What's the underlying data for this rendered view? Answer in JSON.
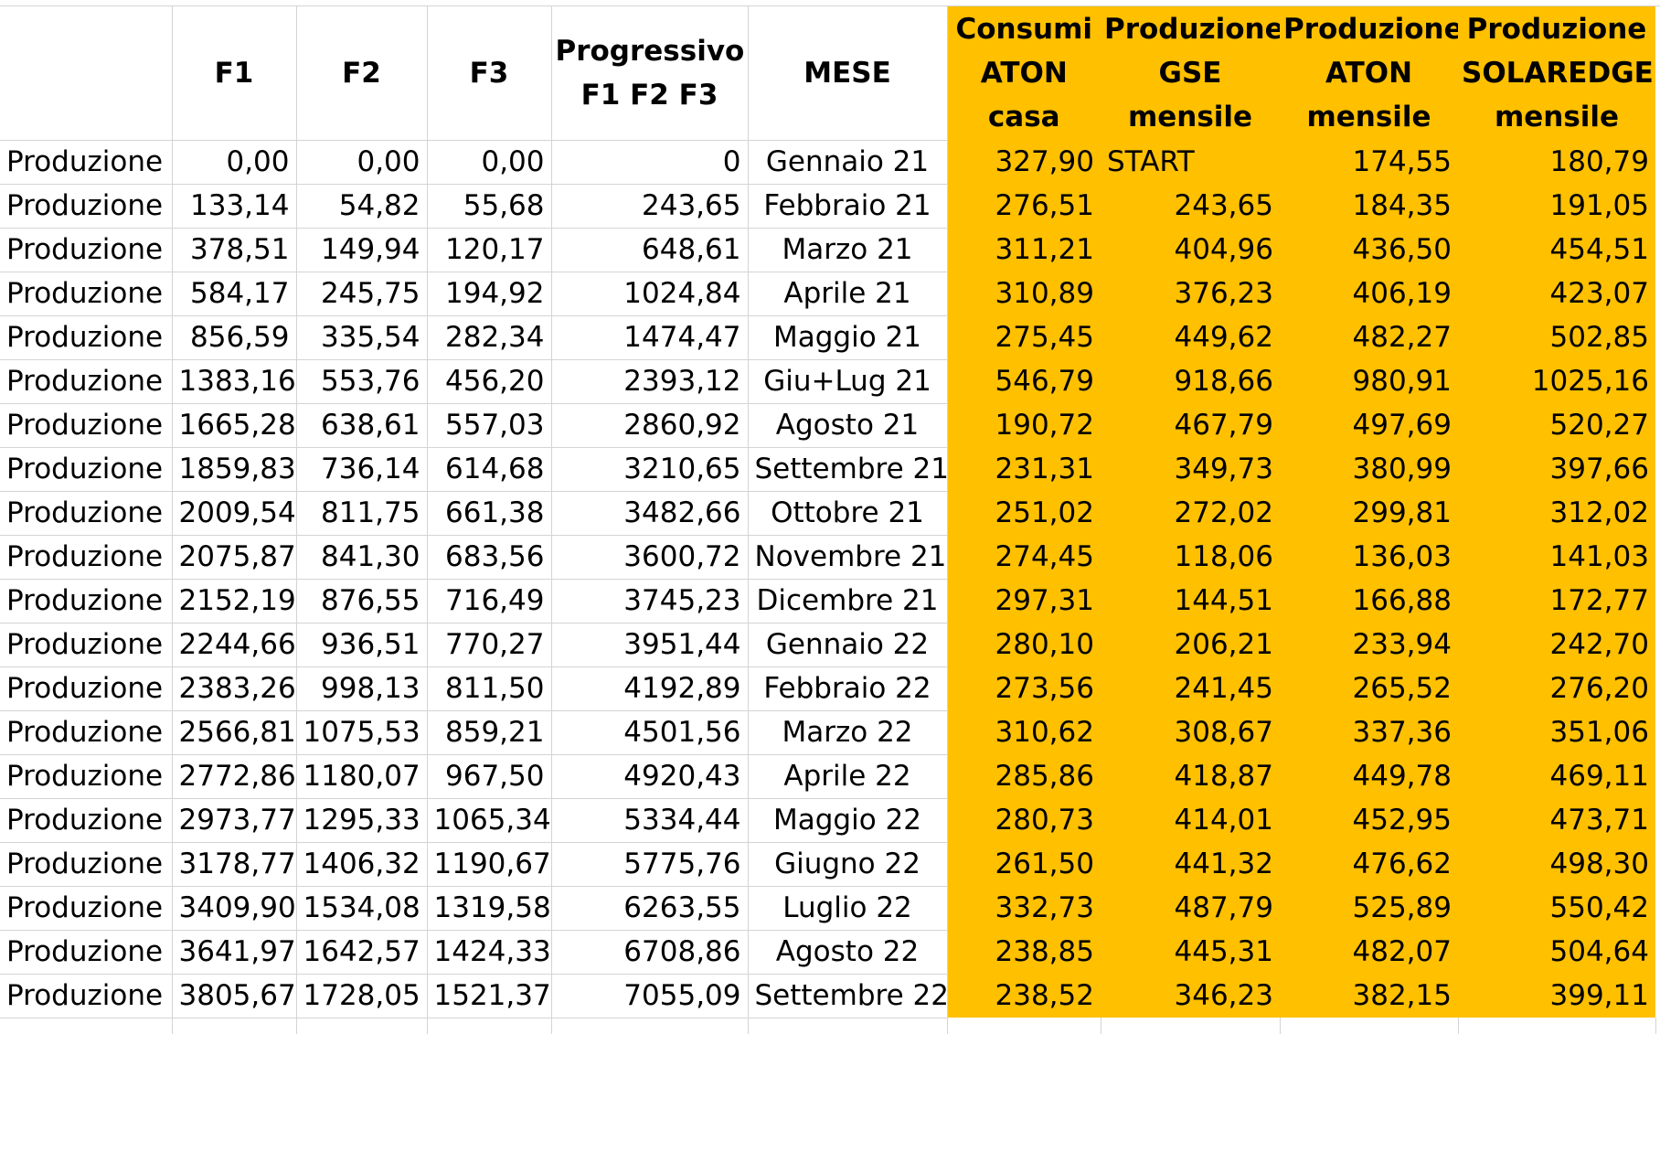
{
  "headers": {
    "label": "",
    "f1": "F1",
    "f2": "F2",
    "f3": "F3",
    "progressivo": [
      "Progressivo",
      "F1 F2 F3"
    ],
    "mese": "MESE",
    "consumi": [
      "Consumi",
      "ATON",
      "casa"
    ],
    "gse": [
      "Produzione",
      "GSE",
      "mensile"
    ],
    "aton": [
      "Produzione",
      "ATON",
      "mensile"
    ],
    "solaredge": [
      "Produzione",
      "SOLAREDGE",
      "mensile"
    ]
  },
  "rows": [
    {
      "label": "Produzione",
      "f1": "0,00",
      "f2": "0,00",
      "f3": "0,00",
      "prog": "0",
      "mese": "Gennaio 21",
      "consumi": "327,90",
      "gse": "START",
      "aton": "174,55",
      "solaredge": "180,79"
    },
    {
      "label": "Produzione",
      "f1": "133,14",
      "f2": "54,82",
      "f3": "55,68",
      "prog": "243,65",
      "mese": "Febbraio 21",
      "consumi": "276,51",
      "gse": "243,65",
      "aton": "184,35",
      "solaredge": "191,05"
    },
    {
      "label": "Produzione",
      "f1": "378,51",
      "f2": "149,94",
      "f3": "120,17",
      "prog": "648,61",
      "mese": "Marzo 21",
      "consumi": "311,21",
      "gse": "404,96",
      "aton": "436,50",
      "solaredge": "454,51"
    },
    {
      "label": "Produzione",
      "f1": "584,17",
      "f2": "245,75",
      "f3": "194,92",
      "prog": "1024,84",
      "mese": "Aprile 21",
      "consumi": "310,89",
      "gse": "376,23",
      "aton": "406,19",
      "solaredge": "423,07"
    },
    {
      "label": "Produzione",
      "f1": "856,59",
      "f2": "335,54",
      "f3": "282,34",
      "prog": "1474,47",
      "mese": "Maggio 21",
      "consumi": "275,45",
      "gse": "449,62",
      "aton": "482,27",
      "solaredge": "502,85"
    },
    {
      "label": "Produzione",
      "f1": "1383,16",
      "f2": "553,76",
      "f3": "456,20",
      "prog": "2393,12",
      "mese": "Giu+Lug 21",
      "consumi": "546,79",
      "gse": "918,66",
      "aton": "980,91",
      "solaredge": "1025,16"
    },
    {
      "label": "Produzione",
      "f1": "1665,28",
      "f2": "638,61",
      "f3": "557,03",
      "prog": "2860,92",
      "mese": "Agosto 21",
      "consumi": "190,72",
      "gse": "467,79",
      "aton": "497,69",
      "solaredge": "520,27"
    },
    {
      "label": "Produzione",
      "f1": "1859,83",
      "f2": "736,14",
      "f3": "614,68",
      "prog": "3210,65",
      "mese": "Settembre 21",
      "consumi": "231,31",
      "gse": "349,73",
      "aton": "380,99",
      "solaredge": "397,66"
    },
    {
      "label": "Produzione",
      "f1": "2009,54",
      "f2": "811,75",
      "f3": "661,38",
      "prog": "3482,66",
      "mese": "Ottobre 21",
      "consumi": "251,02",
      "gse": "272,02",
      "aton": "299,81",
      "solaredge": "312,02"
    },
    {
      "label": "Produzione",
      "f1": "2075,87",
      "f2": "841,30",
      "f3": "683,56",
      "prog": "3600,72",
      "mese": "Novembre 21",
      "consumi": "274,45",
      "gse": "118,06",
      "aton": "136,03",
      "solaredge": "141,03"
    },
    {
      "label": "Produzione",
      "f1": "2152,19",
      "f2": "876,55",
      "f3": "716,49",
      "prog": "3745,23",
      "mese": "Dicembre 21",
      "consumi": "297,31",
      "gse": "144,51",
      "aton": "166,88",
      "solaredge": "172,77"
    },
    {
      "label": "Produzione",
      "f1": "2244,66",
      "f2": "936,51",
      "f3": "770,27",
      "prog": "3951,44",
      "mese": "Gennaio 22",
      "consumi": "280,10",
      "gse": "206,21",
      "aton": "233,94",
      "solaredge": "242,70"
    },
    {
      "label": "Produzione",
      "f1": "2383,26",
      "f2": "998,13",
      "f3": "811,50",
      "prog": "4192,89",
      "mese": "Febbraio 22",
      "consumi": "273,56",
      "gse": "241,45",
      "aton": "265,52",
      "solaredge": "276,20"
    },
    {
      "label": "Produzione",
      "f1": "2566,81",
      "f2": "1075,53",
      "f3": "859,21",
      "prog": "4501,56",
      "mese": "Marzo 22",
      "consumi": "310,62",
      "gse": "308,67",
      "aton": "337,36",
      "solaredge": "351,06"
    },
    {
      "label": "Produzione",
      "f1": "2772,86",
      "f2": "1180,07",
      "f3": "967,50",
      "prog": "4920,43",
      "mese": "Aprile 22",
      "consumi": "285,86",
      "gse": "418,87",
      "aton": "449,78",
      "solaredge": "469,11"
    },
    {
      "label": "Produzione",
      "f1": "2973,77",
      "f2": "1295,33",
      "f3": "1065,34",
      "prog": "5334,44",
      "mese": "Maggio 22",
      "consumi": "280,73",
      "gse": "414,01",
      "aton": "452,95",
      "solaredge": "473,71"
    },
    {
      "label": "Produzione",
      "f1": "3178,77",
      "f2": "1406,32",
      "f3": "1190,67",
      "prog": "5775,76",
      "mese": "Giugno 22",
      "consumi": "261,50",
      "gse": "441,32",
      "aton": "476,62",
      "solaredge": "498,30"
    },
    {
      "label": "Produzione",
      "f1": "3409,90",
      "f2": "1534,08",
      "f3": "1319,58",
      "prog": "6263,55",
      "mese": "Luglio 22",
      "consumi": "332,73",
      "gse": "487,79",
      "aton": "525,89",
      "solaredge": "550,42"
    },
    {
      "label": "Produzione",
      "f1": "3641,97",
      "f2": "1642,57",
      "f3": "1424,33",
      "prog": "6708,86",
      "mese": "Agosto 22",
      "consumi": "238,85",
      "gse": "445,31",
      "aton": "482,07",
      "solaredge": "504,64"
    },
    {
      "label": "Produzione",
      "f1": "3805,67",
      "f2": "1728,05",
      "f3": "1521,37",
      "prog": "7055,09",
      "mese": "Settembre 22",
      "consumi": "238,52",
      "gse": "346,23",
      "aton": "382,15",
      "solaredge": "399,11"
    }
  ],
  "highlight_color": "#ffc000"
}
